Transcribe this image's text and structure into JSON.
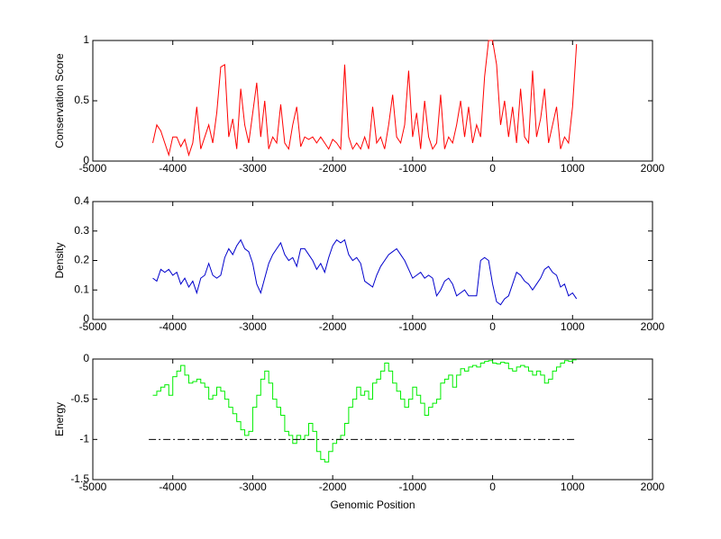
{
  "chart_data": [
    {
      "type": "line",
      "ylabel": "Conservation Score",
      "color": "#ff0000",
      "x": [
        -4250,
        -4200,
        -4150,
        -4100,
        -4050,
        -4000,
        -3950,
        -3900,
        -3850,
        -3800,
        -3750,
        -3700,
        -3650,
        -3600,
        -3550,
        -3500,
        -3450,
        -3400,
        -3350,
        -3300,
        -3250,
        -3200,
        -3150,
        -3100,
        -3050,
        -3000,
        -2950,
        -2900,
        -2850,
        -2800,
        -2750,
        -2700,
        -2650,
        -2600,
        -2550,
        -2500,
        -2450,
        -2400,
        -2350,
        -2300,
        -2250,
        -2200,
        -2150,
        -2100,
        -2050,
        -2000,
        -1950,
        -1900,
        -1850,
        -1800,
        -1750,
        -1700,
        -1650,
        -1600,
        -1550,
        -1500,
        -1450,
        -1400,
        -1350,
        -1300,
        -1250,
        -1200,
        -1150,
        -1100,
        -1050,
        -1000,
        -950,
        -900,
        -850,
        -800,
        -750,
        -700,
        -650,
        -600,
        -550,
        -500,
        -450,
        -400,
        -350,
        -300,
        -250,
        -200,
        -150,
        -100,
        -50,
        0,
        50,
        100,
        150,
        200,
        250,
        300,
        350,
        400,
        450,
        500,
        550,
        600,
        650,
        700,
        750,
        800,
        850,
        900,
        950,
        1000,
        1050
      ],
      "values": [
        0.15,
        0.3,
        0.25,
        0.15,
        0.05,
        0.2,
        0.2,
        0.12,
        0.18,
        0.05,
        0.15,
        0.45,
        0.1,
        0.2,
        0.3,
        0.15,
        0.4,
        0.78,
        0.8,
        0.2,
        0.35,
        0.1,
        0.6,
        0.3,
        0.15,
        0.4,
        0.65,
        0.2,
        0.5,
        0.1,
        0.2,
        0.15,
        0.47,
        0.15,
        0.1,
        0.3,
        0.45,
        0.12,
        0.2,
        0.18,
        0.2,
        0.15,
        0.2,
        0.15,
        0.1,
        0.18,
        0.15,
        0.1,
        0.8,
        0.2,
        0.1,
        0.15,
        0.1,
        0.2,
        0.1,
        0.45,
        0.15,
        0.2,
        0.1,
        0.3,
        0.55,
        0.2,
        0.15,
        0.3,
        0.75,
        0.2,
        0.4,
        0.1,
        0.5,
        0.2,
        0.1,
        0.15,
        0.55,
        0.1,
        0.2,
        0.15,
        0.3,
        0.5,
        0.2,
        0.45,
        0.15,
        0.3,
        0.2,
        0.7,
        1,
        1,
        0.8,
        0.3,
        0.5,
        0.2,
        0.45,
        0.15,
        0.6,
        0.2,
        0.15,
        0.75,
        0.2,
        0.35,
        0.6,
        0.15,
        0.3,
        0.45,
        0.1,
        0.2,
        0.15,
        0.45,
        0.97
      ],
      "xlim": [
        -5000,
        2000
      ],
      "xticks": [
        -5000,
        -4000,
        -3000,
        -2000,
        -1000,
        0,
        1000,
        2000
      ],
      "ylim": [
        0,
        1
      ],
      "yticks": [
        0,
        0.5,
        1
      ]
    },
    {
      "type": "line",
      "ylabel": "Density",
      "color": "#0000cc",
      "x": [
        -4250,
        -4200,
        -4150,
        -4100,
        -4050,
        -4000,
        -3950,
        -3900,
        -3850,
        -3800,
        -3750,
        -3700,
        -3650,
        -3600,
        -3550,
        -3500,
        -3450,
        -3400,
        -3350,
        -3300,
        -3250,
        -3200,
        -3150,
        -3100,
        -3050,
        -3000,
        -2950,
        -2900,
        -2850,
        -2800,
        -2750,
        -2700,
        -2650,
        -2600,
        -2550,
        -2500,
        -2450,
        -2400,
        -2350,
        -2300,
        -2250,
        -2200,
        -2150,
        -2100,
        -2050,
        -2000,
        -1950,
        -1900,
        -1850,
        -1800,
        -1750,
        -1700,
        -1650,
        -1600,
        -1550,
        -1500,
        -1450,
        -1400,
        -1350,
        -1300,
        -1250,
        -1200,
        -1150,
        -1100,
        -1050,
        -1000,
        -950,
        -900,
        -850,
        -800,
        -750,
        -700,
        -650,
        -600,
        -550,
        -500,
        -450,
        -400,
        -350,
        -300,
        -250,
        -200,
        -150,
        -100,
        -50,
        0,
        50,
        100,
        150,
        200,
        250,
        300,
        350,
        400,
        450,
        500,
        550,
        600,
        650,
        700,
        750,
        800,
        850,
        900,
        950,
        1000,
        1050
      ],
      "values": [
        0.14,
        0.13,
        0.17,
        0.16,
        0.17,
        0.15,
        0.16,
        0.12,
        0.14,
        0.11,
        0.13,
        0.09,
        0.14,
        0.15,
        0.19,
        0.15,
        0.14,
        0.15,
        0.21,
        0.24,
        0.22,
        0.25,
        0.27,
        0.24,
        0.23,
        0.19,
        0.12,
        0.09,
        0.14,
        0.19,
        0.22,
        0.24,
        0.26,
        0.22,
        0.2,
        0.21,
        0.18,
        0.24,
        0.24,
        0.22,
        0.2,
        0.17,
        0.19,
        0.16,
        0.21,
        0.25,
        0.27,
        0.26,
        0.27,
        0.22,
        0.2,
        0.21,
        0.19,
        0.13,
        0.12,
        0.11,
        0.15,
        0.18,
        0.2,
        0.22,
        0.23,
        0.24,
        0.22,
        0.2,
        0.17,
        0.14,
        0.15,
        0.16,
        0.14,
        0.15,
        0.14,
        0.08,
        0.1,
        0.13,
        0.14,
        0.12,
        0.08,
        0.09,
        0.1,
        0.08,
        0.08,
        0.08,
        0.2,
        0.21,
        0.2,
        0.12,
        0.06,
        0.05,
        0.07,
        0.08,
        0.12,
        0.16,
        0.15,
        0.13,
        0.12,
        0.1,
        0.12,
        0.14,
        0.17,
        0.18,
        0.16,
        0.15,
        0.11,
        0.12,
        0.08,
        0.09,
        0.07
      ],
      "xlim": [
        -5000,
        2000
      ],
      "xticks": [
        -5000,
        -4000,
        -3000,
        -2000,
        -1000,
        0,
        1000,
        2000
      ],
      "ylim": [
        0,
        0.4
      ],
      "yticks": [
        0,
        0.1,
        0.2,
        0.3,
        0.4
      ]
    },
    {
      "type": "line",
      "ylabel": "Energy",
      "xlabel": "Genomic Position",
      "color": "#00ee00",
      "drawstyle": "steps",
      "x": [
        -4250,
        -4200,
        -4150,
        -4100,
        -4050,
        -4000,
        -3950,
        -3900,
        -3850,
        -3800,
        -3750,
        -3700,
        -3650,
        -3600,
        -3550,
        -3500,
        -3450,
        -3400,
        -3350,
        -3300,
        -3250,
        -3200,
        -3150,
        -3100,
        -3050,
        -3000,
        -2950,
        -2900,
        -2850,
        -2800,
        -2750,
        -2700,
        -2650,
        -2600,
        -2550,
        -2500,
        -2450,
        -2400,
        -2350,
        -2300,
        -2250,
        -2200,
        -2150,
        -2100,
        -2050,
        -2000,
        -1950,
        -1900,
        -1850,
        -1800,
        -1750,
        -1700,
        -1650,
        -1600,
        -1550,
        -1500,
        -1450,
        -1400,
        -1350,
        -1300,
        -1250,
        -1200,
        -1150,
        -1100,
        -1050,
        -1000,
        -950,
        -900,
        -850,
        -800,
        -750,
        -700,
        -650,
        -600,
        -550,
        -500,
        -450,
        -400,
        -350,
        -300,
        -250,
        -200,
        -150,
        -100,
        -50,
        0,
        50,
        100,
        150,
        200,
        250,
        300,
        350,
        400,
        450,
        500,
        550,
        600,
        650,
        700,
        750,
        800,
        850,
        900,
        950,
        1000,
        1050
      ],
      "values": [
        -0.45,
        -0.4,
        -0.35,
        -0.32,
        -0.45,
        -0.22,
        -0.15,
        -0.08,
        -0.2,
        -0.3,
        -0.28,
        -0.25,
        -0.3,
        -0.35,
        -0.5,
        -0.45,
        -0.35,
        -0.4,
        -0.5,
        -0.6,
        -0.68,
        -0.78,
        -0.88,
        -0.95,
        -0.9,
        -0.6,
        -0.45,
        -0.25,
        -0.15,
        -0.3,
        -0.5,
        -0.6,
        -0.7,
        -0.9,
        -0.95,
        -1.05,
        -0.95,
        -1,
        -0.95,
        -0.8,
        -0.9,
        -1.15,
        -1.25,
        -1.28,
        -1.15,
        -1.05,
        -1,
        -0.95,
        -0.8,
        -0.6,
        -0.5,
        -0.35,
        -0.45,
        -0.4,
        -0.5,
        -0.3,
        -0.25,
        -0.15,
        -0.05,
        -0.15,
        -0.3,
        -0.4,
        -0.5,
        -0.6,
        -0.5,
        -0.35,
        -0.45,
        -0.55,
        -0.7,
        -0.6,
        -0.55,
        -0.5,
        -0.3,
        -0.25,
        -0.2,
        -0.35,
        -0.2,
        -0.12,
        -0.15,
        -0.1,
        -0.08,
        -0.1,
        -0.05,
        -0.03,
        -0.02,
        -0.05,
        -0.06,
        -0.04,
        -0.05,
        -0.12,
        -0.15,
        -0.1,
        -0.08,
        -0.1,
        -0.15,
        -0.2,
        -0.15,
        -0.2,
        -0.3,
        -0.25,
        -0.15,
        -0.1,
        -0.05,
        -0.02,
        -0.03,
        -0.01,
        -0.01
      ],
      "reference_line": {
        "x": [
          -4300,
          1050
        ],
        "values": [
          -1,
          -1
        ],
        "color": "#000000",
        "dash": "dashdot"
      },
      "xlim": [
        -5000,
        2000
      ],
      "xticks": [
        -5000,
        -4000,
        -3000,
        -2000,
        -1000,
        0,
        1000,
        2000
      ],
      "ylim": [
        -1.5,
        0
      ],
      "yticks": [
        -1.5,
        -1,
        -0.5,
        0
      ]
    }
  ]
}
